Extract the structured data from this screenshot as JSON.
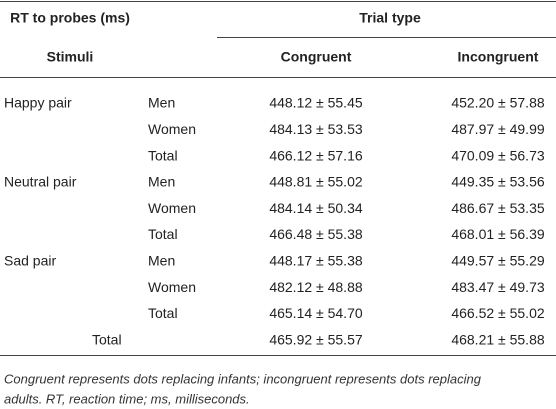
{
  "header": {
    "rt_label": "RT to probes (ms)",
    "trial_type": "Trial type",
    "stimuli": "Stimuli",
    "congruent": "Congruent",
    "incongruent": "Incongruent"
  },
  "table": {
    "rows": [
      {
        "group": "Happy pair",
        "sub": "Men",
        "congruent": "448.12 ± 55.45",
        "incongruent": "452.20 ± 57.88"
      },
      {
        "sub": "Women",
        "congruent": "484.13 ± 53.53",
        "incongruent": "487.97 ± 49.99"
      },
      {
        "sub": "Total",
        "congruent": "466.12 ± 57.16",
        "incongruent": "470.09 ± 56.73"
      },
      {
        "group": "Neutral pair",
        "sub": "Men",
        "congruent": "448.81 ± 55.02",
        "incongruent": "449.35 ± 53.56"
      },
      {
        "sub": "Women",
        "congruent": "484.14 ± 50.34",
        "incongruent": "486.67 ± 53.35"
      },
      {
        "sub": "Total",
        "congruent": "466.48 ± 55.38",
        "incongruent": "468.01 ± 56.39"
      },
      {
        "group": "Sad pair",
        "sub": "Men",
        "congruent": "448.17 ± 55.38",
        "incongruent": "449.57 ± 55.29"
      },
      {
        "sub": "Women",
        "congruent": "482.12 ± 48.88",
        "incongruent": "483.47 ± 49.73"
      },
      {
        "sub": "Total",
        "congruent": "465.14 ± 54.70",
        "incongruent": "466.52 ± 55.02"
      },
      {
        "group": "Total",
        "congruent": "465.92 ± 55.57",
        "incongruent": "468.21 ± 55.88"
      }
    ]
  },
  "footnote": [
    "Congruent represents dots replacing infants; incongruent represents dots replacing",
    "adults. RT, reaction time; ms, milliseconds."
  ]
}
